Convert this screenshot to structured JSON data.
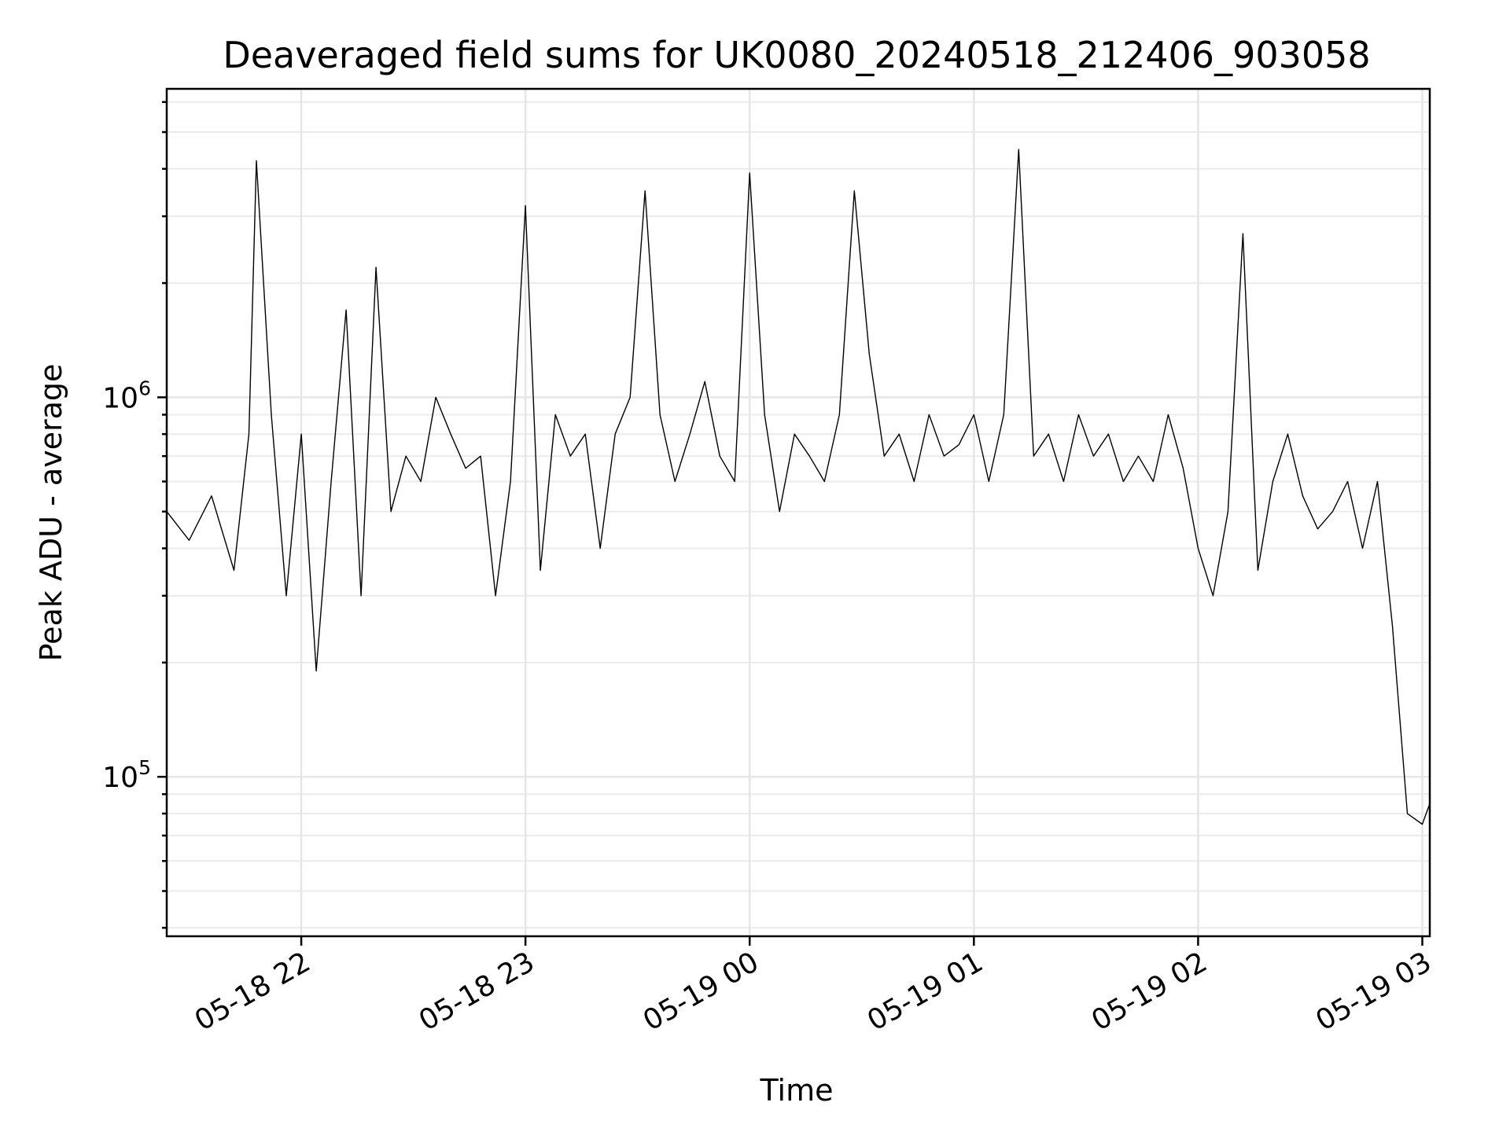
{
  "chart_data": {
    "type": "line",
    "title": "Deaveraged field sums for UK0080_20240518_212406_903058",
    "xlabel": "Time",
    "ylabel": "Peak ADU - average",
    "y_scale": "log",
    "xlim": [
      "2024-05-18 21:24",
      "2024-05-19 03:02"
    ],
    "ylim": [
      38000,
      6500000
    ],
    "x_ticks": [
      {
        "value": "2024-05-18 22:00",
        "label": "05-18 22"
      },
      {
        "value": "2024-05-18 23:00",
        "label": "05-18 23"
      },
      {
        "value": "2024-05-19 00:00",
        "label": "05-19 00"
      },
      {
        "value": "2024-05-19 01:00",
        "label": "05-19 01"
      },
      {
        "value": "2024-05-19 02:00",
        "label": "05-19 02"
      },
      {
        "value": "2024-05-19 03:00",
        "label": "05-19 03"
      }
    ],
    "y_ticks": [
      {
        "value": 100000,
        "base": "10",
        "exp": "5"
      },
      {
        "value": 1000000,
        "base": "10",
        "exp": "6"
      }
    ],
    "grid": true,
    "line_color": "#000000",
    "series": [
      {
        "x": [
          "2024-05-18 21:24",
          "2024-05-18 21:30",
          "2024-05-18 21:36",
          "2024-05-18 21:42",
          "2024-05-18 21:46",
          "2024-05-18 21:48",
          "2024-05-18 21:52",
          "2024-05-18 21:56",
          "2024-05-18 22:00",
          "2024-05-18 22:04",
          "2024-05-18 22:08",
          "2024-05-18 22:12",
          "2024-05-18 22:16",
          "2024-05-18 22:20",
          "2024-05-18 22:24",
          "2024-05-18 22:28",
          "2024-05-18 22:32",
          "2024-05-18 22:36",
          "2024-05-18 22:40",
          "2024-05-18 22:44",
          "2024-05-18 22:48",
          "2024-05-18 22:52",
          "2024-05-18 22:56",
          "2024-05-18 23:00",
          "2024-05-18 23:04",
          "2024-05-18 23:08",
          "2024-05-18 23:12",
          "2024-05-18 23:16",
          "2024-05-18 23:20",
          "2024-05-18 23:24",
          "2024-05-18 23:28",
          "2024-05-18 23:32",
          "2024-05-18 23:36",
          "2024-05-18 23:40",
          "2024-05-18 23:44",
          "2024-05-18 23:48",
          "2024-05-18 23:52",
          "2024-05-18 23:56",
          "2024-05-19 00:00",
          "2024-05-19 00:04",
          "2024-05-19 00:08",
          "2024-05-19 00:12",
          "2024-05-19 00:16",
          "2024-05-19 00:20",
          "2024-05-19 00:24",
          "2024-05-19 00:28",
          "2024-05-19 00:32",
          "2024-05-19 00:36",
          "2024-05-19 00:40",
          "2024-05-19 00:44",
          "2024-05-19 00:48",
          "2024-05-19 00:52",
          "2024-05-19 00:56",
          "2024-05-19 01:00",
          "2024-05-19 01:04",
          "2024-05-19 01:08",
          "2024-05-19 01:12",
          "2024-05-19 01:16",
          "2024-05-19 01:20",
          "2024-05-19 01:24",
          "2024-05-19 01:28",
          "2024-05-19 01:32",
          "2024-05-19 01:36",
          "2024-05-19 01:40",
          "2024-05-19 01:44",
          "2024-05-19 01:48",
          "2024-05-19 01:52",
          "2024-05-19 01:56",
          "2024-05-19 02:00",
          "2024-05-19 02:04",
          "2024-05-19 02:08",
          "2024-05-19 02:12",
          "2024-05-19 02:16",
          "2024-05-19 02:20",
          "2024-05-19 02:24",
          "2024-05-19 02:28",
          "2024-05-19 02:32",
          "2024-05-19 02:36",
          "2024-05-19 02:40",
          "2024-05-19 02:44",
          "2024-05-19 02:48",
          "2024-05-19 02:52",
          "2024-05-19 02:56",
          "2024-05-19 03:00",
          "2024-05-19 03:02"
        ],
        "y": [
          500000,
          420000,
          550000,
          350000,
          800000,
          4200000,
          900000,
          300000,
          800000,
          190000,
          600000,
          1700000,
          300000,
          2200000,
          500000,
          700000,
          600000,
          1000000,
          800000,
          650000,
          700000,
          300000,
          600000,
          3200000,
          350000,
          900000,
          700000,
          800000,
          400000,
          800000,
          1000000,
          3500000,
          900000,
          600000,
          800000,
          1100000,
          700000,
          600000,
          3900000,
          900000,
          500000,
          800000,
          700000,
          600000,
          900000,
          3500000,
          1300000,
          700000,
          800000,
          600000,
          900000,
          700000,
          750000,
          900000,
          600000,
          900000,
          4500000,
          700000,
          800000,
          600000,
          900000,
          700000,
          800000,
          600000,
          700000,
          600000,
          900000,
          650000,
          400000,
          300000,
          500000,
          2700000,
          350000,
          600000,
          800000,
          550000,
          450000,
          500000,
          600000,
          400000,
          600000,
          250000,
          80000,
          75000,
          85000
        ]
      }
    ]
  }
}
